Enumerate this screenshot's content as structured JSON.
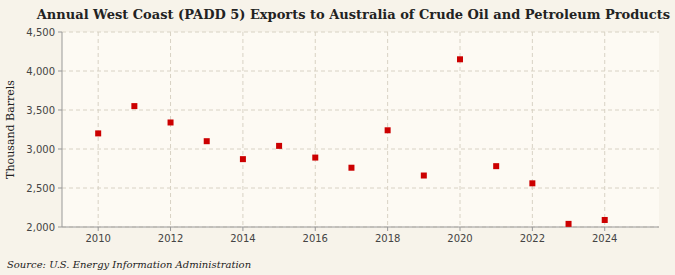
{
  "chart_data": {
    "type": "scatter",
    "title": "Annual West Coast (PADD 5) Exports to Australia of Crude Oil and Petroleum Products",
    "ylabel": "Thousand Barrels",
    "source": "Source: U.S. Energy Information Administration",
    "x": [
      2010,
      2011,
      2012,
      2013,
      2014,
      2015,
      2016,
      2017,
      2018,
      2019,
      2020,
      2021,
      2022,
      2023,
      2024
    ],
    "values": [
      3200,
      3550,
      3340,
      3100,
      2870,
      3040,
      2890,
      2760,
      3240,
      2660,
      4150,
      2780,
      2560,
      2040,
      2090
    ],
    "color": "#cc0000",
    "marker": "square",
    "xlim": [
      2009,
      2025.5
    ],
    "xticks": [
      2010,
      2012,
      2014,
      2016,
      2018,
      2020,
      2022,
      2024
    ],
    "ylim": [
      2000,
      4500
    ],
    "yticks": [
      {
        "value": 2000,
        "label": "2,000"
      },
      {
        "value": 2500,
        "label": "2,500"
      },
      {
        "value": 3000,
        "label": "3,000"
      },
      {
        "value": 3500,
        "label": "3,500"
      },
      {
        "value": 4000,
        "label": "4,000"
      },
      {
        "value": 4500,
        "label": "4,500"
      }
    ],
    "grid": true
  }
}
